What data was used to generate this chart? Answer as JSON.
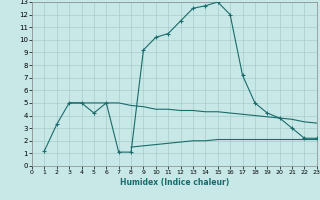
{
  "xlabel": "Humidex (Indice chaleur)",
  "bg_color": "#c8e8e8",
  "grid_color": "#a8cccc",
  "line_color": "#1a6b6b",
  "xlim": [
    0,
    23
  ],
  "ylim": [
    0,
    13
  ],
  "xticks": [
    0,
    1,
    2,
    3,
    4,
    5,
    6,
    7,
    8,
    9,
    10,
    11,
    12,
    13,
    14,
    15,
    16,
    17,
    18,
    19,
    20,
    21,
    22,
    23
  ],
  "yticks": [
    0,
    1,
    2,
    3,
    4,
    5,
    6,
    7,
    8,
    9,
    10,
    11,
    12,
    13
  ],
  "line1_x": [
    1,
    2,
    3,
    4,
    5,
    6,
    7,
    8,
    9,
    10,
    11,
    12,
    13,
    14,
    15,
    16,
    17,
    18,
    19,
    20,
    21,
    22,
    23
  ],
  "line1_y": [
    1.2,
    3.3,
    5.0,
    5.0,
    4.2,
    5.0,
    1.1,
    1.1,
    9.2,
    10.2,
    10.5,
    11.5,
    12.5,
    12.7,
    13.0,
    12.0,
    7.2,
    5.0,
    4.2,
    3.8,
    3.0,
    2.2,
    2.2
  ],
  "line2_x": [
    3,
    4,
    5,
    6,
    7,
    8,
    9,
    10,
    11,
    12,
    13,
    14,
    15,
    16,
    17,
    18,
    19,
    20,
    21,
    22,
    23
  ],
  "line2_y": [
    5.0,
    5.0,
    5.0,
    5.0,
    5.0,
    4.8,
    4.7,
    4.5,
    4.5,
    4.4,
    4.4,
    4.3,
    4.3,
    4.2,
    4.1,
    4.0,
    3.9,
    3.8,
    3.7,
    3.5,
    3.4
  ],
  "line3_x": [
    8,
    9,
    10,
    11,
    12,
    13,
    14,
    15,
    16,
    17,
    18,
    19,
    20,
    21,
    22,
    23
  ],
  "line3_y": [
    1.5,
    1.6,
    1.7,
    1.8,
    1.9,
    2.0,
    2.0,
    2.1,
    2.1,
    2.1,
    2.1,
    2.1,
    2.1,
    2.1,
    2.1,
    2.1
  ],
  "marker_x": [
    3,
    4,
    5,
    6,
    7,
    8,
    9,
    10,
    11,
    12,
    13,
    14,
    15,
    16,
    17,
    18,
    19,
    20,
    21,
    22,
    23
  ],
  "marker1_y": [
    5.0,
    5.0,
    4.2,
    5.0,
    1.1,
    1.1,
    9.2,
    10.2,
    10.5,
    11.5,
    12.5,
    12.7,
    13.0,
    12.0,
    7.2,
    5.0,
    4.2,
    3.8,
    3.0,
    2.2,
    2.2
  ]
}
